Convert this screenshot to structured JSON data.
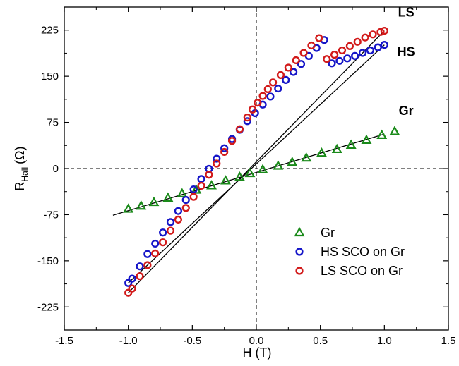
{
  "chart_data": {
    "type": "scatter",
    "xlabel": "H (T)",
    "ylabel_main": "R",
    "ylabel_sub": "Hall",
    "ylabel_unit": "(Ω)",
    "xlim": [
      -1.5,
      1.5
    ],
    "ylim": [
      -262.5,
      262.5
    ],
    "xticks": [
      -1.5,
      -1.0,
      -0.5,
      0.0,
      0.5,
      1.0,
      1.5
    ],
    "xtick_labels": [
      "-1.5",
      "-1.0",
      "-0.5",
      "0.0",
      "0.5",
      "1.0",
      "1.5"
    ],
    "yticks": [
      -225,
      -150,
      -75,
      0,
      75,
      150,
      225
    ],
    "ytick_labels": [
      "-225",
      "-150",
      "-75",
      "0",
      "75",
      "150",
      "225"
    ],
    "grid": false,
    "legend_position": "bottom-right",
    "annotations": [
      {
        "text": "LS",
        "x": 1.17,
        "y": 247
      },
      {
        "text": "HS",
        "x": 1.17,
        "y": 183
      },
      {
        "text": "Gr",
        "x": 1.17,
        "y": 87
      }
    ],
    "series": [
      {
        "name": "Gr",
        "marker": "triangle",
        "color": "#1a8a1a",
        "x": [
          -1.0,
          -0.9,
          -0.8,
          -0.69,
          -0.58,
          -0.47,
          -0.35,
          -0.24,
          -0.13,
          -0.05,
          0.05,
          0.17,
          0.28,
          0.39,
          0.51,
          0.63,
          0.74,
          0.86,
          0.98,
          1.08
        ],
        "y": [
          -66,
          -61,
          -55,
          -48,
          -41,
          -35,
          -28,
          -20,
          -14,
          -8,
          -2,
          4,
          10,
          17,
          25,
          31,
          38,
          46,
          54,
          60
        ],
        "fit": {
          "x": [
            -1.12,
            1.0
          ],
          "y": [
            -76,
            56
          ]
        }
      },
      {
        "name": "HS SCO on Gr",
        "marker": "circle",
        "color": "#1515c8",
        "x": [
          -1.0,
          -0.97,
          -0.91,
          -0.85,
          -0.79,
          -0.73,
          -0.67,
          -0.61,
          -0.55,
          -0.49,
          -0.43,
          -0.37,
          -0.31,
          -0.25,
          -0.19,
          -0.13,
          -0.07,
          -0.01,
          0.05,
          0.11,
          0.17,
          0.23,
          0.29,
          0.35,
          0.41,
          0.47,
          0.53,
          0.59,
          0.65,
          0.71,
          0.77,
          0.83,
          0.89,
          0.95,
          1.0
        ],
        "y": [
          -186,
          -179,
          -159,
          -139,
          -122,
          -104,
          -87,
          -69,
          -51,
          -34,
          -17,
          -0.5,
          16,
          33,
          48,
          63,
          77,
          90,
          104,
          117,
          130,
          144,
          157,
          170,
          183,
          196,
          209,
          171,
          175,
          179,
          183,
          188,
          192,
          197,
          201
        ],
        "fit": {
          "x": [
            -1.0,
            1.0
          ],
          "y": [
            -186,
            201
          ]
        }
      },
      {
        "name": "LS SCO on Gr",
        "marker": "circle",
        "color": "#d21a1a",
        "x": [
          -1.0,
          -0.97,
          -0.91,
          -0.85,
          -0.79,
          -0.73,
          -0.67,
          -0.61,
          -0.55,
          -0.49,
          -0.43,
          -0.37,
          -0.31,
          -0.25,
          -0.19,
          -0.13,
          -0.07,
          -0.03,
          0.01,
          0.05,
          0.09,
          0.13,
          0.19,
          0.25,
          0.31,
          0.37,
          0.43,
          0.49,
          0.55,
          0.61,
          0.67,
          0.73,
          0.79,
          0.85,
          0.91,
          0.97,
          1.0
        ],
        "y": [
          -202,
          -195,
          -175,
          -157,
          -138,
          -120,
          -101,
          -83,
          -64,
          -46,
          -28,
          -10,
          8,
          27,
          45,
          64,
          83,
          96,
          107,
          118,
          129,
          140,
          152,
          164,
          176,
          188,
          200,
          212,
          178,
          185,
          192,
          199,
          206,
          213,
          218,
          222,
          224
        ],
        "fit": {
          "x": [
            -1.0,
            1.0
          ],
          "y": [
            -202,
            224
          ]
        }
      }
    ]
  }
}
